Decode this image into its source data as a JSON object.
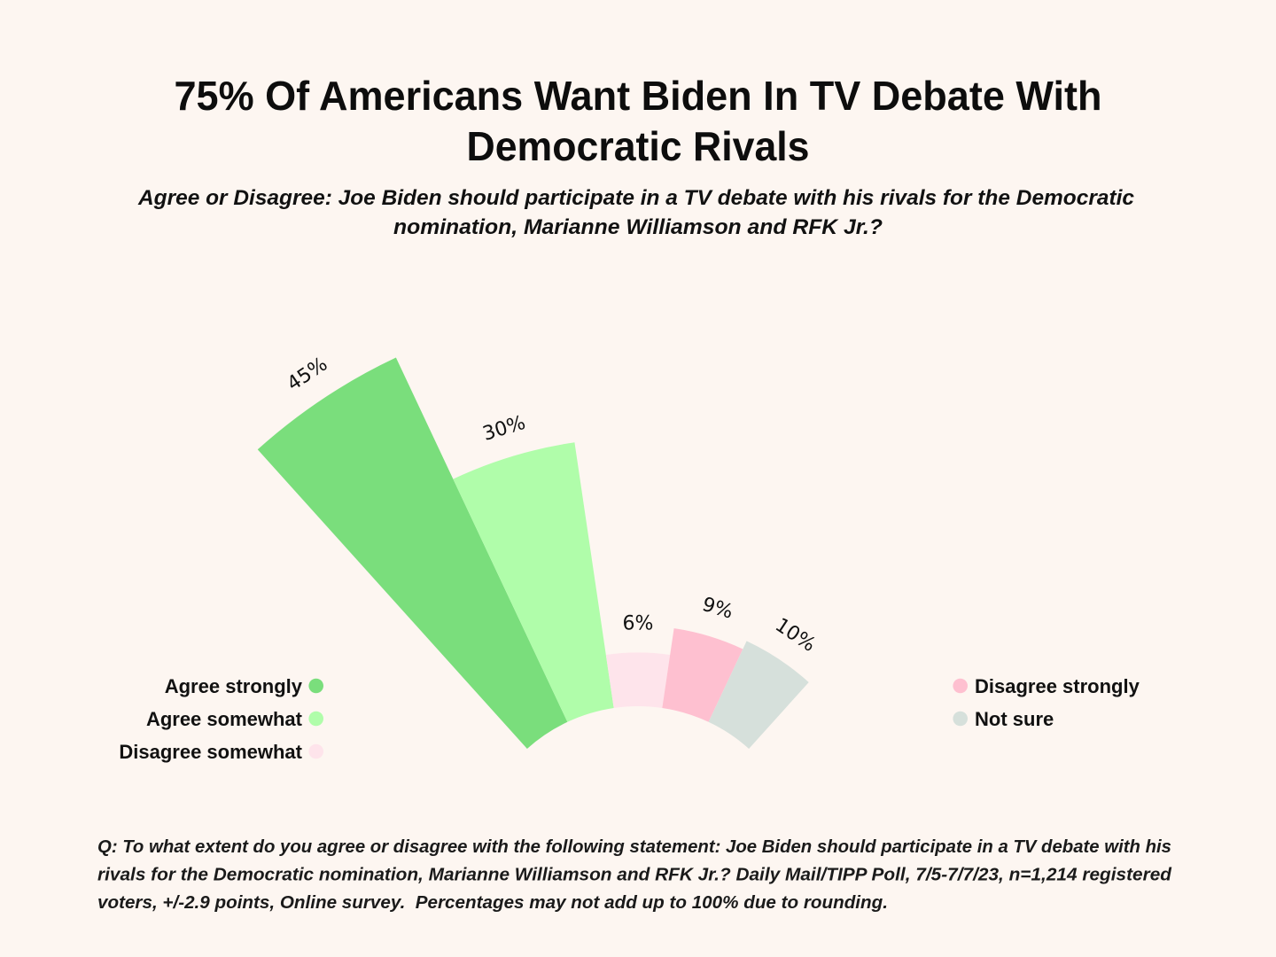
{
  "colors": {
    "background": "#FDF6F1",
    "text": "#111111"
  },
  "header": {
    "title_lines": [
      "75% Of Americans Want Biden In TV Debate With",
      "Democratic Rivals"
    ],
    "subtitle_lines": [
      "Agree or Disagree: Joe Biden should participate in a TV debate with his rivals for the Democratic",
      "nomination, Marianne Williamson and RFK Jr.?"
    ]
  },
  "footer": {
    "lines": [
      "Q: To what extent do you agree or disagree with the following statement: Joe Biden should participate in a TV debate with his",
      "rivals for the Democratic nomination, Marianne Williamson and RFK Jr.? Daily Mail/TIPP Poll, 7/5-7/7/23, n=1,214 registered",
      "voters, +/-2.9 points, Online survey.  Percentages may not add up to 100% due to rounding."
    ]
  },
  "chart_data": {
    "type": "bar",
    "orientation": "radial",
    "title": "75% Of Americans Want Biden In TV Debate With Democratic Rivals",
    "subtitle": "Agree or Disagree: Joe Biden should participate in a TV debate with his rivals for the Democratic nomination, Marianne Williamson and RFK Jr.?",
    "xlabel": "",
    "ylabel": "",
    "unit": "%",
    "categories": [
      "Agree strongly",
      "Agree somewhat",
      "Disagree somewhat",
      "Disagree strongly",
      "Not sure"
    ],
    "values": [
      45,
      30,
      6,
      9,
      10
    ],
    "value_labels": [
      "45%",
      "30%",
      "6%",
      "9%",
      "10%"
    ],
    "colors": [
      "#7ADE7C",
      "#B0FDAA",
      "#FEE4EB",
      "#FEC0D0",
      "#D6E0DB"
    ],
    "grid": false,
    "legend": {
      "placement": "left-and-right",
      "left": [
        {
          "label": "Agree strongly",
          "color": "#7ADE7C"
        },
        {
          "label": "Agree somewhat",
          "color": "#B0FDAA"
        },
        {
          "label": "Disagree somewhat",
          "color": "#FEE4EB"
        }
      ],
      "right": [
        {
          "label": "Disagree strongly",
          "color": "#FEC0D0"
        },
        {
          "label": "Not sure",
          "color": "#D6E0DB"
        }
      ]
    }
  }
}
